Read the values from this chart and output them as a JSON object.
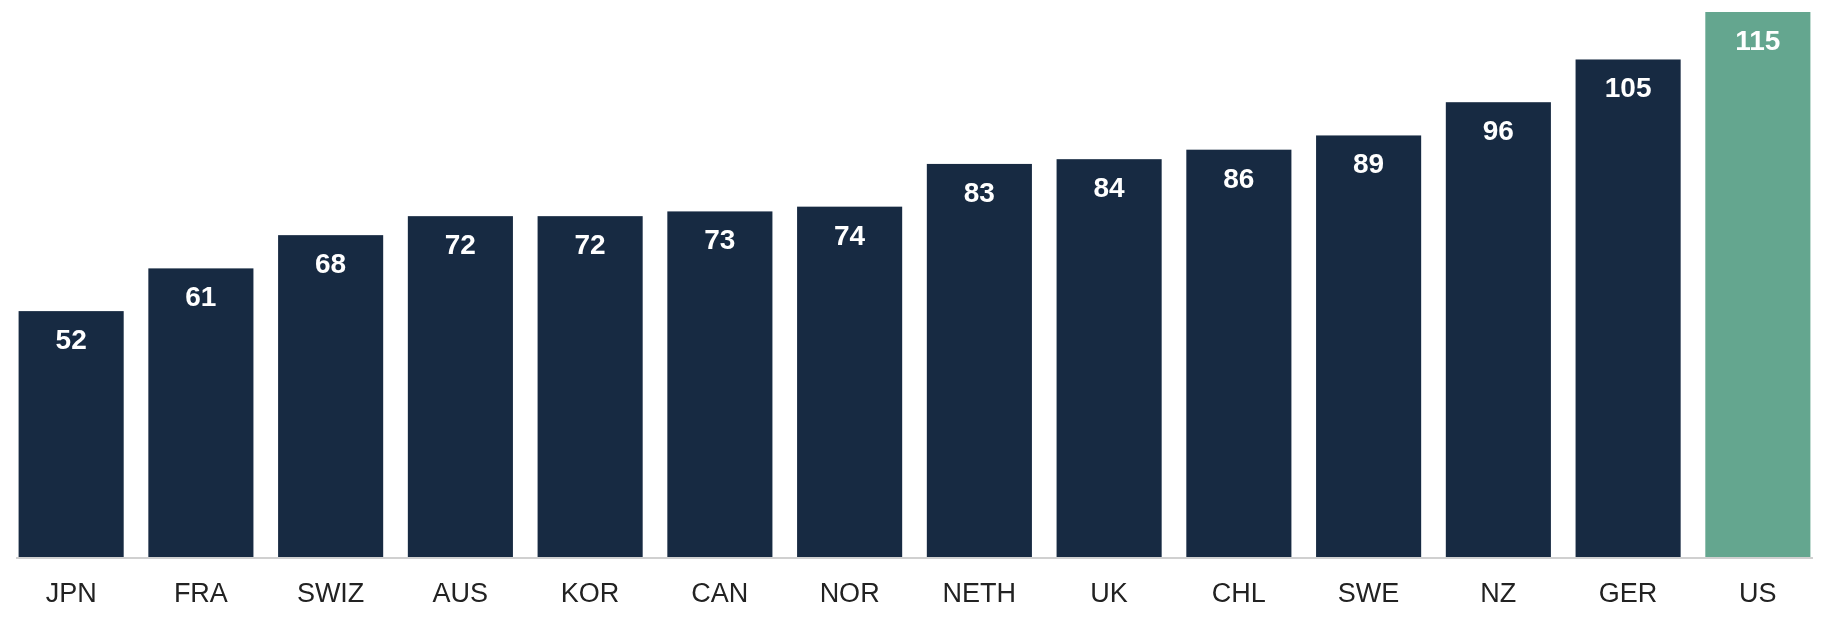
{
  "chart_data": {
    "type": "bar",
    "categories": [
      "JPN",
      "FRA",
      "SWIZ",
      "AUS",
      "KOR",
      "CAN",
      "NOR",
      "NETH",
      "UK",
      "CHL",
      "SWE",
      "NZ",
      "GER",
      "US"
    ],
    "values": [
      52,
      61,
      68,
      72,
      72,
      73,
      74,
      83,
      84,
      86,
      89,
      96,
      105,
      115
    ],
    "colors": [
      "#172a42",
      "#172a42",
      "#172a42",
      "#172a42",
      "#172a42",
      "#172a42",
      "#172a42",
      "#172a42",
      "#172a42",
      "#172a42",
      "#172a42",
      "#172a42",
      "#172a42",
      "#64a68f"
    ],
    "data_labels": true
  }
}
